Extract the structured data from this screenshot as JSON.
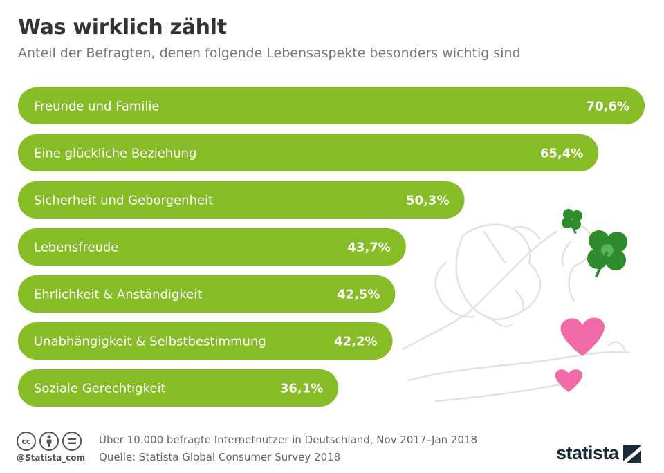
{
  "header": {
    "title": "Was wirklich zählt",
    "subtitle": "Anteil der Befragten, denen folgende Lebensaspekte besonders wichtig sind"
  },
  "chart_data": {
    "type": "bar",
    "orientation": "horizontal",
    "title": "Was wirklich zählt",
    "subtitle": "Anteil der Befragten, denen folgende Lebensaspekte besonders wichtig sind",
    "categories": [
      "Freunde und Familie",
      "Eine glückliche Beziehung",
      "Sicherheit und Geborgenheit",
      "Lebensfreude",
      "Ehrlichkeit & Anständigkeit",
      "Unabhängigkeit & Selbstbestimmung",
      "Soziale Gerechtigkeit"
    ],
    "values": [
      70.6,
      65.4,
      50.3,
      43.7,
      42.5,
      42.2,
      36.1
    ],
    "value_labels": [
      "70,6%",
      "65,4%",
      "50,3%",
      "43,7%",
      "42,5%",
      "42,2%",
      "36,1%"
    ],
    "unit": "%",
    "xlim": [
      0,
      70.6
    ],
    "bar_color": "#86bc25",
    "grid": false,
    "legend": "none"
  },
  "decoration": {
    "icons": [
      "hands-icon",
      "clover-icon",
      "heart-icon"
    ],
    "heart_color": "#f06ba8",
    "clover_color": "#2e8b2e"
  },
  "footer": {
    "note": "Über 10.000 befragte Internetnutzer in Deutschland, Nov 2017–Jan 2018",
    "source": "Quelle: Statista Global Consumer Survey 2018",
    "handle": "@Statista_com",
    "license_icons": [
      "cc",
      "by",
      "nd"
    ],
    "brand": "statista"
  }
}
